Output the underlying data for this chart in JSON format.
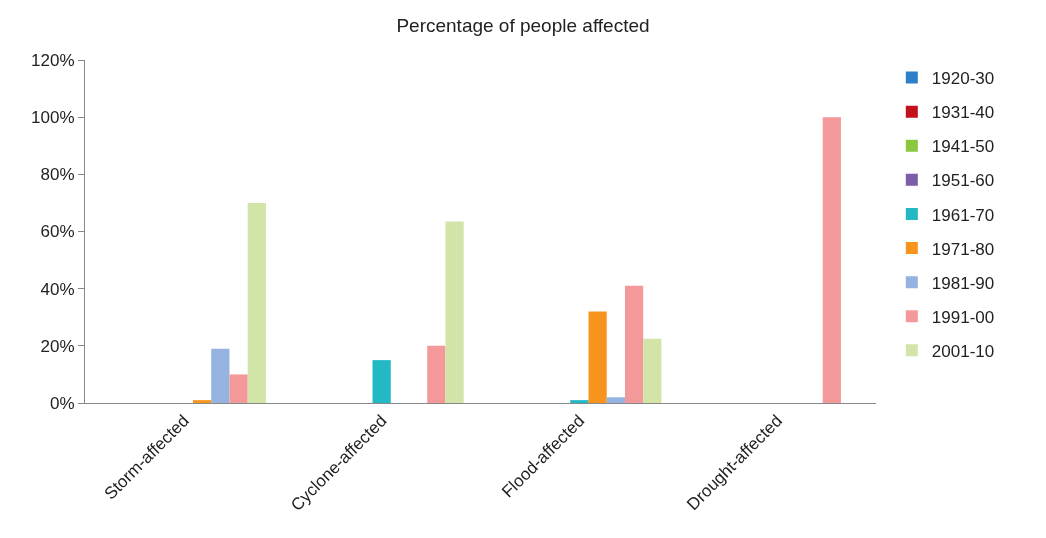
{
  "chart_data": {
    "type": "bar",
    "title": "Percentage of people affected",
    "categories": [
      "Storm-affected",
      "Cyclone-affected",
      "Flood-affected",
      "Drought-affected"
    ],
    "series": [
      {
        "name": "1920-30",
        "color": "#2f7fc8",
        "values": [
          0,
          0,
          0,
          0
        ]
      },
      {
        "name": "1931-40",
        "color": "#c1121c",
        "values": [
          0,
          0,
          0,
          0
        ]
      },
      {
        "name": "1941-50",
        "color": "#8dc63f",
        "values": [
          0,
          0,
          0,
          0
        ]
      },
      {
        "name": "1951-60",
        "color": "#7b5ea7",
        "values": [
          0,
          0,
          0,
          0
        ]
      },
      {
        "name": "1961-70",
        "color": "#22b8c4",
        "values": [
          0,
          15,
          1,
          0
        ]
      },
      {
        "name": "1971-80",
        "color": "#f7941d",
        "values": [
          1,
          0,
          32,
          0
        ]
      },
      {
        "name": "1981-90",
        "color": "#95b3e0",
        "values": [
          19,
          0,
          2,
          0
        ]
      },
      {
        "name": "1991-00",
        "color": "#f4999a",
        "values": [
          10,
          20,
          41,
          100
        ]
      },
      {
        "name": "2001-10",
        "color": "#d2e4a8",
        "values": [
          70,
          63.5,
          22.5,
          0
        ]
      }
    ],
    "ylim": [
      0,
      120
    ],
    "yticks": [
      {
        "value": 0,
        "label": "0%"
      },
      {
        "value": 20,
        "label": "20%"
      },
      {
        "value": 40,
        "label": "40%"
      },
      {
        "value": 60,
        "label": "60%"
      },
      {
        "value": 80,
        "label": "80%"
      },
      {
        "value": 100,
        "label": "100%"
      },
      {
        "value": 120,
        "label": "120%"
      }
    ],
    "grid": false,
    "legend": "right"
  }
}
